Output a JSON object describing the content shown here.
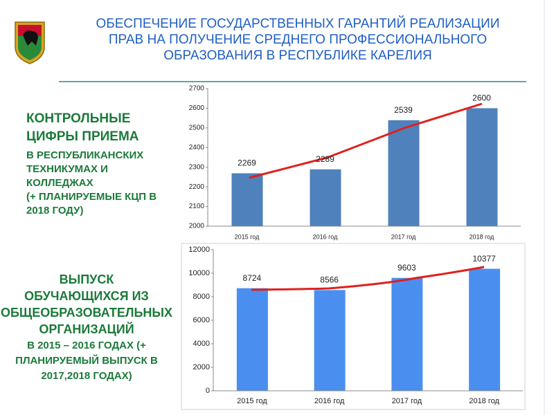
{
  "slide": {
    "title_lines": [
      "ОБЕСПЕЧЕНИЕ  ГОСУДАРСТВЕННЫХ ГАРАНТИЙ РЕАЛИЗАЦИИ",
      "ПРАВ НА ПОЛУЧЕНИЕ СРЕДНЕГО ПРОФЕССИОНАЛЬНОГО",
      "ОБРАЗОВАНИЯ    В РЕСПУБЛИКЕ КАРЕЛИЯ"
    ],
    "caption1": [
      "КОНТРОЛЬНЫЕ",
      "ЦИФРЫ ПРИЕМА",
      "В РЕСПУБЛИКАНСКИХ",
      "ТЕХНИКУМАХ И",
      "КОЛЛЕДЖАХ",
      "(+ ПЛАНИРУЕМЫЕ  КЦП  В",
      "2018 ГОДУ)"
    ],
    "caption2": [
      "ВЫПУСК",
      "ОБУЧАЮЩИХСЯ ИЗ",
      "ОБЩЕОБРАЗОВАТЕЛЬНЫХ",
      "ОРГАНИЗАЦИЙ",
      "В 2015 – 2016 ГОДАХ (+",
      "ПЛАНИРУЕМЫЙ ВЫПУСК  В",
      "2017,2018  ГОДАХ)"
    ]
  },
  "chart_data": [
    {
      "type": "bar",
      "categories": [
        "2015 год",
        "2016 год",
        "2017 год",
        "2018 год"
      ],
      "values": [
        2269,
        2289,
        2539,
        2600
      ],
      "color": "#4f81bd",
      "ylim": [
        2000,
        2700
      ],
      "yticks": [
        2000,
        2100,
        2200,
        2300,
        2400,
        2500,
        2600,
        2700
      ]
    },
    {
      "type": "bar",
      "categories": [
        "2015 год",
        "2016 год",
        "2017 год",
        "2018 год"
      ],
      "values": [
        8724,
        8566,
        9603,
        10377
      ],
      "color": "#4a8ff0",
      "ylim": [
        0,
        12000
      ],
      "yticks": [
        0,
        2000,
        4000,
        6000,
        8000,
        10000,
        12000
      ]
    }
  ]
}
